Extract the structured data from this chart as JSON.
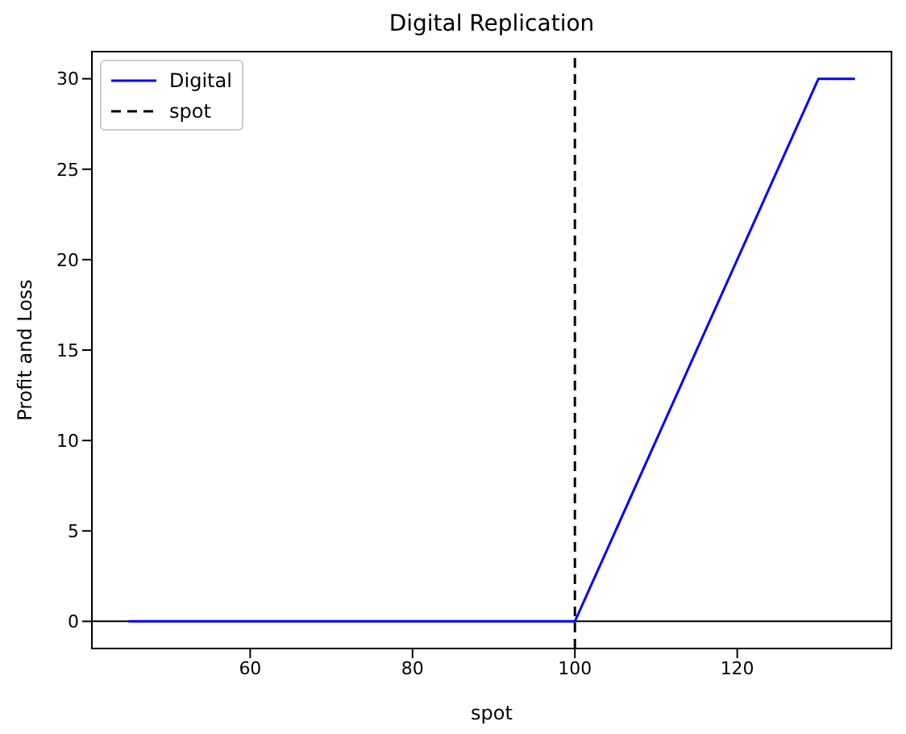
{
  "chart_data": {
    "type": "line",
    "title": "Digital Replication",
    "xlabel": "spot",
    "ylabel": "Profit and Loss",
    "x": [
      45,
      100,
      130,
      134.5
    ],
    "series": [
      {
        "name": "Digital",
        "color": "#0000ff",
        "values": [
          0,
          0,
          30,
          30
        ]
      }
    ],
    "xlim": [
      40.5,
      139
    ],
    "xticks": [
      60,
      80,
      100,
      120
    ],
    "ylim": [
      -1.5,
      31.5
    ],
    "yticks": [
      0,
      5,
      10,
      15,
      20,
      25,
      30
    ],
    "ref_lines": [
      {
        "axis": "x",
        "value": 100,
        "label": "spot",
        "color": "#000000",
        "line_style": "dashed"
      },
      {
        "axis": "y",
        "value": 0,
        "color": "#000000",
        "line_style": "solid"
      }
    ],
    "grid": false,
    "legend": "top left",
    "marker": "none",
    "line_style": "solid"
  }
}
